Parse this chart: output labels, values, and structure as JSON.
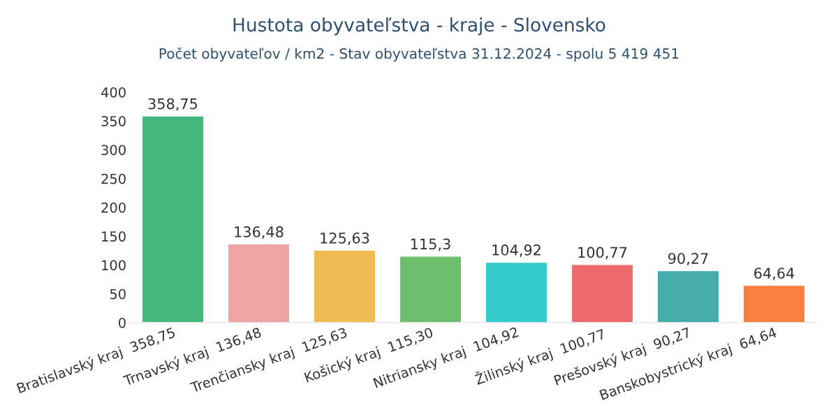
{
  "chart_data": {
    "type": "bar",
    "title": "Hustota obyvateľstva - kraje - Slovensko",
    "subtitle": "Počet obyvateľov / km2 - Stav obyvateľstva 31.12.2024 - spolu 5 419 451",
    "categories": [
      "Bratislavský kraj  358,75",
      "Trnavský kraj  136,48",
      "Trenčiansky kraj  125,63",
      "Košický kraj  115,30",
      "Nitriansky kraj  104,92",
      "Žilinský kraj  100,77",
      "Prešovský kraj  90,27",
      "Banskobystrický kraj  64,64"
    ],
    "values": [
      358.75,
      136.48,
      125.63,
      115.3,
      104.92,
      100.77,
      90.27,
      64.64
    ],
    "value_labels": [
      "358,75",
      "136,48",
      "125,63",
      "115,3",
      "104,92",
      "100,77",
      "90,27",
      "64,64"
    ],
    "colors": [
      "#45b97c",
      "#f0a3a3",
      "#f0bc52",
      "#6dbf6d",
      "#36cbcb",
      "#ee6b6b",
      "#45abab",
      "#f8813f"
    ],
    "ylim": [
      0,
      400
    ],
    "yticks": [
      0,
      50,
      100,
      150,
      200,
      250,
      300,
      350,
      400
    ],
    "grid": false,
    "legend": false
  }
}
